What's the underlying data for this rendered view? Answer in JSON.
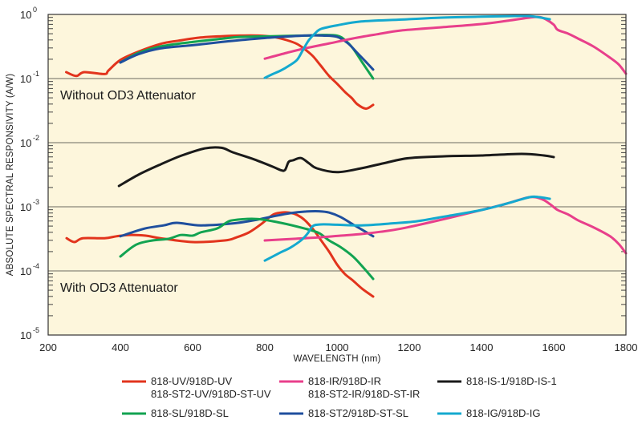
{
  "chart_data": {
    "type": "line",
    "title": "",
    "xlabel": "WAVELENGTH (nm)",
    "ylabel": "ABSOLUTE SPECTRAL RESPONSIVITY (A/W)",
    "xlim": [
      200,
      1800
    ],
    "ylim_log10": [
      -5,
      0
    ],
    "yscale": "log",
    "grid": "horizontal decade lines",
    "background_color": "#fdf6dc",
    "x_ticks": [
      "200",
      "400",
      "600",
      "800",
      "1000",
      "1200",
      "1400",
      "1600",
      "1800"
    ],
    "x_tick_values": [
      200,
      400,
      600,
      800,
      1000,
      1200,
      1400,
      1600,
      1800
    ],
    "y_ticks": [
      {
        "base": "10",
        "exp": "0",
        "log10": 0
      },
      {
        "base": "10",
        "exp": "-1",
        "log10": -1
      },
      {
        "base": "10",
        "exp": "-2",
        "log10": -2
      },
      {
        "base": "10",
        "exp": "-3",
        "log10": -3
      },
      {
        "base": "10",
        "exp": "-4",
        "log10": -4
      },
      {
        "base": "10",
        "exp": "-5",
        "log10": -5
      }
    ],
    "annotations": [
      {
        "text": "Without OD3 Attenuator",
        "x": 300,
        "log10": -1.25
      },
      {
        "text": "With OD3 Attenuator",
        "x": 300,
        "log10": -4.25
      }
    ],
    "legend": {
      "placement": "bottom",
      "entries": [
        {
          "lines": [
            "818-UV/918D-UV",
            "818-ST2-UV/918D-ST-UV"
          ],
          "color": "#e2341d"
        },
        {
          "lines": [
            "818-IR/918D-IR",
            "818-ST2-IR/918D-ST-IR"
          ],
          "color": "#e83f8b"
        },
        {
          "lines": [
            "818-IS-1/918D-IS-1"
          ],
          "color": "#1a1a1a"
        },
        {
          "lines": [
            "818-SL/918D-SL"
          ],
          "color": "#12a351"
        },
        {
          "lines": [
            "818-ST2/918D-ST-SL"
          ],
          "color": "#1f4f9e"
        },
        {
          "lines": [
            "818-IG/918D-IG"
          ],
          "color": "#14a9cf"
        }
      ]
    },
    "series": [
      {
        "name": "818-UV/918D-UV (without OD3)",
        "color": "#e2341d",
        "x": [
          250,
          278,
          300,
          356,
          367,
          400,
          450,
          511,
          560,
          622,
          680,
          733,
          780,
          822,
          860,
          889,
          910,
          933,
          955,
          978,
          1000,
          1022,
          1040,
          1056,
          1080,
          1100
        ],
        "log10": [
          -0.9,
          -0.96,
          -0.9,
          -0.93,
          -0.875,
          -0.71,
          -0.58,
          -0.46,
          -0.41,
          -0.36,
          -0.34,
          -0.33,
          -0.33,
          -0.35,
          -0.4,
          -0.46,
          -0.54,
          -0.65,
          -0.8,
          -0.96,
          -1.08,
          -1.21,
          -1.3,
          -1.4,
          -1.47,
          -1.41
        ]
      },
      {
        "name": "818-SL/918D-SL (without OD3)",
        "color": "#12a351",
        "x": [
          400,
          450,
          511,
          600,
          680,
          733,
          820,
          911,
          960,
          1000,
          1022,
          1044,
          1070,
          1100
        ],
        "log10": [
          -0.75,
          -0.6,
          -0.5,
          -0.43,
          -0.38,
          -0.35,
          -0.34,
          -0.33,
          -0.32,
          -0.33,
          -0.4,
          -0.53,
          -0.75,
          -1.0
        ]
      },
      {
        "name": "818-ST2/918D-ST-SL (without OD3)",
        "color": "#1f4f9e",
        "x": [
          400,
          450,
          511,
          600,
          680,
          733,
          820,
          911,
          960,
          1000,
          1030,
          1056,
          1080,
          1100
        ],
        "log10": [
          -0.75,
          -0.62,
          -0.53,
          -0.48,
          -0.43,
          -0.4,
          -0.36,
          -0.33,
          -0.33,
          -0.35,
          -0.45,
          -0.6,
          -0.74,
          -0.86
        ]
      },
      {
        "name": "818-IR/918D-IR (without OD3)",
        "color": "#e83f8b",
        "x": [
          800,
          860,
          911,
          980,
          1044,
          1110,
          1178,
          1290,
          1400,
          1470,
          1533,
          1560,
          1578,
          1600,
          1611,
          1640,
          1667,
          1710,
          1756,
          1780,
          1800
        ],
        "log10": [
          -0.69,
          -0.6,
          -0.53,
          -0.45,
          -0.375,
          -0.31,
          -0.25,
          -0.2,
          -0.15,
          -0.1,
          -0.05,
          -0.04,
          -0.075,
          -0.16,
          -0.24,
          -0.3,
          -0.375,
          -0.5,
          -0.675,
          -0.78,
          -0.925
        ]
      },
      {
        "name": "818-IG/918D-IG (without OD3)",
        "color": "#14a9cf",
        "x": [
          800,
          822,
          844,
          867,
          889,
          905,
          922,
          940,
          956,
          1000,
          1067,
          1180,
          1289,
          1400,
          1489,
          1540,
          1589
        ],
        "log10": [
          -0.99,
          -0.93,
          -0.875,
          -0.8,
          -0.71,
          -0.56,
          -0.4,
          -0.29,
          -0.225,
          -0.17,
          -0.11,
          -0.08,
          -0.05,
          -0.035,
          -0.025,
          -0.03,
          -0.075
        ]
      },
      {
        "name": "818-IS-1/918D-IS-1",
        "color": "#1a1a1a",
        "x": [
          396,
          450,
          511,
          570,
          633,
          680,
          711,
          770,
          822,
          845,
          856,
          866,
          878,
          900,
          922,
          944,
          1000,
          1067,
          1130,
          1200,
          1311,
          1400,
          1511,
          1573,
          1600
        ],
        "log10": [
          -2.675,
          -2.5,
          -2.34,
          -2.2,
          -2.09,
          -2.08,
          -2.15,
          -2.26,
          -2.375,
          -2.43,
          -2.425,
          -2.3,
          -2.275,
          -2.24,
          -2.32,
          -2.4,
          -2.46,
          -2.4,
          -2.32,
          -2.24,
          -2.21,
          -2.2,
          -2.175,
          -2.2,
          -2.225
        ]
      },
      {
        "name": "818-UV/918D-UV (with OD3)",
        "color": "#e2341d",
        "x": [
          251,
          273,
          296,
          356,
          389,
          422,
          470,
          511,
          600,
          689,
          720,
          756,
          790,
          822,
          845,
          867,
          890,
          911,
          935,
          956,
          978,
          1000,
          1022,
          1044,
          1070,
          1100
        ],
        "log10": [
          -3.49,
          -3.55,
          -3.49,
          -3.49,
          -3.46,
          -3.44,
          -3.45,
          -3.49,
          -3.55,
          -3.525,
          -3.48,
          -3.4,
          -3.27,
          -3.125,
          -3.09,
          -3.09,
          -3.13,
          -3.21,
          -3.36,
          -3.525,
          -3.7,
          -3.9,
          -4.05,
          -4.15,
          -4.28,
          -4.4
        ]
      },
      {
        "name": "818-ST2/918D-ST-SL (with OD3)",
        "color": "#1f4f9e",
        "x": [
          400,
          467,
          520,
          556,
          622,
          711,
          780,
          822,
          870,
          911,
          950,
          978,
          1010,
          1044,
          1070,
          1100
        ],
        "log10": [
          -3.46,
          -3.34,
          -3.29,
          -3.25,
          -3.29,
          -3.26,
          -3.2,
          -3.15,
          -3.1,
          -3.075,
          -3.07,
          -3.09,
          -3.16,
          -3.275,
          -3.36,
          -3.46
        ]
      },
      {
        "name": "818-SL/918D-SL (with OD3)",
        "color": "#12a351",
        "x": [
          400,
          444,
          489,
          533,
          567,
          600,
          622,
          667,
          690,
          711,
          778,
          844,
          911,
          950,
          978,
          1010,
          1044,
          1070,
          1100
        ],
        "log10": [
          -3.775,
          -3.59,
          -3.525,
          -3.5,
          -3.44,
          -3.45,
          -3.4,
          -3.34,
          -3.26,
          -3.21,
          -3.19,
          -3.25,
          -3.34,
          -3.41,
          -3.525,
          -3.63,
          -3.775,
          -3.93,
          -4.125
        ]
      },
      {
        "name": "818-IR/918D-IR (with OD3)",
        "color": "#e83f8b",
        "x": [
          800,
          880,
          956,
          1010,
          1067,
          1120,
          1178,
          1290,
          1400,
          1470,
          1533,
          1567,
          1590,
          1611,
          1640,
          1667,
          1710,
          1756,
          1780,
          1800
        ],
        "log10": [
          -3.525,
          -3.5,
          -3.475,
          -3.45,
          -3.425,
          -3.39,
          -3.34,
          -3.2,
          -3.05,
          -2.95,
          -2.85,
          -2.88,
          -2.96,
          -3.05,
          -3.12,
          -3.21,
          -3.32,
          -3.46,
          -3.58,
          -3.725
        ]
      },
      {
        "name": "818-IG/918D-IG (with OD3)",
        "color": "#14a9cf",
        "x": [
          800,
          844,
          870,
          900,
          918,
          933,
          956,
          1000,
          1067,
          1150,
          1222,
          1310,
          1400,
          1470,
          1533,
          1560,
          1589
        ],
        "log10": [
          -3.84,
          -3.71,
          -3.64,
          -3.525,
          -3.42,
          -3.3,
          -3.275,
          -3.28,
          -3.29,
          -3.26,
          -3.225,
          -3.14,
          -3.05,
          -2.95,
          -2.85,
          -2.85,
          -2.875
        ]
      }
    ]
  }
}
